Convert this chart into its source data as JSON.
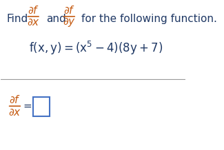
{
  "bg_color": "#ffffff",
  "border_color": "#4472c4",
  "text_color": "#1f3864",
  "orange_color": "#c55a11",
  "line_color": "#999999",
  "find_text": "Find",
  "and_text": "and",
  "for_text": "for the following function.",
  "func_label": "f(x,y) = ",
  "func_math": "(x^{5} - 4)\\,(8y + 7)",
  "partial_f": "\\partial f",
  "partial_x": "\\partial x",
  "partial_y": "\\partial y",
  "eq_label": "\\dfrac{\\partial f}{\\partial x}",
  "fontsize_main": 11,
  "fontsize_math": 12
}
